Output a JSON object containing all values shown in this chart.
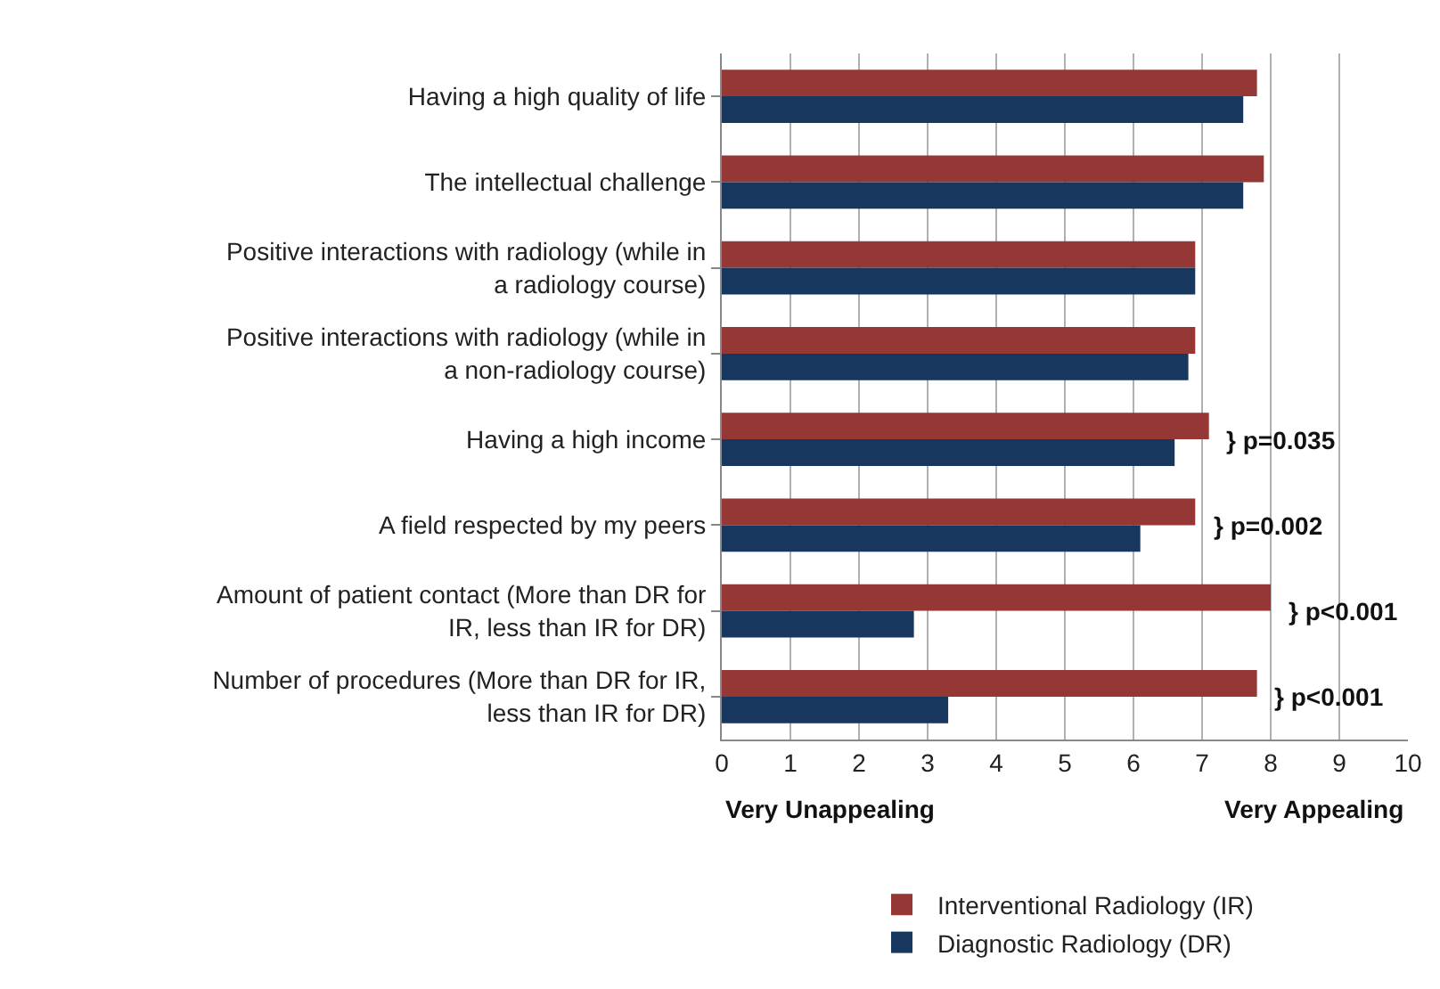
{
  "chart_data": {
    "type": "bar",
    "orientation": "horizontal",
    "categories": [
      "Having a high quality of life",
      "The intellectual challenge",
      "Positive interactions with radiology (while in a radiology course)",
      "Positive interactions with radiology (while in a non-radiology course)",
      "Having a high income",
      "A field respected by my peers",
      "Amount of patient contact (More than DR for IR, less than IR for DR)",
      "Number of procedures (More than DR for IR, less than IR for DR)"
    ],
    "series": [
      {
        "name": "Interventional Radiology (IR)",
        "color": "#953735",
        "values": [
          7.8,
          7.9,
          6.9,
          6.9,
          7.1,
          6.9,
          8.0,
          7.8
        ]
      },
      {
        "name": "Diagnostic Radiology (DR)",
        "color": "#17375e",
        "values": [
          7.6,
          7.6,
          6.9,
          6.8,
          6.6,
          6.1,
          2.8,
          3.3
        ]
      }
    ],
    "xlim": [
      0,
      10
    ],
    "xticks": [
      0,
      1,
      2,
      3,
      4,
      5,
      6,
      7,
      8,
      9,
      10
    ],
    "grid": "x",
    "legend": "bottom",
    "annotations": [
      {
        "text": "} p=0.035",
        "x": 7.1,
        "y": "Having a high income"
      },
      {
        "text": "} p=0.002",
        "x": 6.9,
        "y": "A field respected by my peers"
      },
      {
        "text": "} p<0.001",
        "x": 8.0,
        "y": "Amount of patient contact (More than DR for IR, less than IR for DR)"
      },
      {
        "text": "} p<0.001",
        "x": 7.8,
        "y": "Number of procedures (More than DR for IR, less than IR for DR)"
      },
      "Very Unappealing",
      "Very Appealing"
    ]
  }
}
